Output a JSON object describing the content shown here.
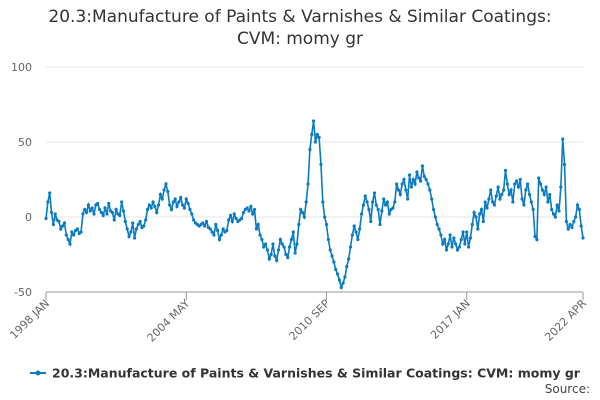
{
  "chart_data": {
    "type": "line",
    "title": "20.3:Manufacture of Paints & Varnishes & Similar Coatings: CVM: momy gr",
    "source": "Source:",
    "categories": [
      "1998 JAN",
      null,
      null,
      null,
      null,
      null,
      null,
      null,
      null,
      null,
      null,
      null,
      null,
      null,
      null,
      null,
      null,
      null,
      null,
      null,
      null,
      null,
      null,
      null,
      null,
      null,
      null,
      null,
      null,
      null,
      null,
      null,
      null,
      null,
      null,
      null,
      null,
      null,
      null,
      null,
      null,
      null,
      null,
      null,
      null,
      null,
      null,
      null,
      null,
      null,
      null,
      null,
      null,
      null,
      null,
      null,
      null,
      null,
      null,
      null,
      null,
      null,
      null,
      null,
      null,
      null,
      null,
      null,
      null,
      null,
      null,
      null,
      null,
      null,
      null,
      null,
      "2004 MAY",
      null,
      null,
      null,
      null,
      null,
      null,
      null,
      null,
      null,
      null,
      null,
      null,
      null,
      null,
      null,
      null,
      null,
      null,
      null,
      null,
      null,
      null,
      null,
      null,
      null,
      null,
      null,
      null,
      null,
      null,
      null,
      null,
      null,
      null,
      null,
      null,
      null,
      null,
      null,
      null,
      null,
      null,
      null,
      null,
      null,
      null,
      null,
      null,
      null,
      null,
      null,
      null,
      null,
      null,
      null,
      null,
      null,
      null,
      null,
      null,
      null,
      null,
      null,
      null,
      null,
      null,
      null,
      null,
      null,
      null,
      null,
      null,
      null,
      null,
      null,
      "2010 SEP",
      null,
      null,
      null,
      null,
      null,
      null,
      null,
      null,
      null,
      null,
      null,
      null,
      null,
      null,
      null,
      null,
      null,
      null,
      null,
      null,
      null,
      null,
      null,
      null,
      null,
      null,
      null,
      null,
      null,
      null,
      null,
      null,
      null,
      null,
      null,
      null,
      null,
      null,
      null,
      null,
      null,
      null,
      null,
      null,
      null,
      null,
      null,
      null,
      null,
      null,
      null,
      null,
      null,
      null,
      null,
      null,
      null,
      null,
      null,
      null,
      null,
      null,
      null,
      null,
      null,
      null,
      null,
      null,
      null,
      null,
      null,
      null,
      null,
      null,
      null,
      "2017 JAN",
      null,
      null,
      null,
      null,
      null,
      null,
      null,
      null,
      null,
      null,
      null,
      null,
      null,
      null,
      null,
      null,
      null,
      null,
      null,
      null,
      null,
      null,
      null,
      null,
      null,
      null,
      null,
      null,
      null,
      null,
      null,
      null,
      null,
      null,
      null,
      null,
      null,
      null,
      null,
      null,
      null,
      null,
      null,
      null,
      null,
      null,
      null,
      null,
      null,
      null,
      null,
      null,
      null,
      null,
      null,
      null,
      null,
      null,
      null,
      null,
      null,
      null,
      "2022 APR"
    ],
    "series": [
      {
        "name": "20.3:Manufacture of Paints & Varnishes & Similar Coatings: CVM: momy gr",
        "color": "#0a7bc1",
        "values": [
          -1,
          10,
          16,
          3,
          -5,
          2,
          -2,
          -3,
          -8,
          -6,
          -4,
          -12,
          -15,
          -18,
          -10,
          -12,
          -9,
          -8,
          -11,
          -10,
          2,
          5,
          3,
          8,
          4,
          6,
          2,
          8,
          9,
          5,
          3,
          1,
          6,
          2,
          9,
          4,
          3,
          -2,
          5,
          2,
          1,
          10,
          4,
          -3,
          -8,
          -13,
          -10,
          -4,
          -14,
          -8,
          -5,
          -3,
          -7,
          -6,
          -2,
          5,
          8,
          6,
          10,
          7,
          3,
          8,
          15,
          12,
          18,
          22,
          17,
          8,
          5,
          10,
          12,
          7,
          10,
          13,
          8,
          6,
          12,
          9,
          5,
          2,
          -2,
          -4,
          -5,
          -6,
          -5,
          -4,
          -6,
          -3,
          -7,
          -8,
          -10,
          -12,
          -5,
          -9,
          -15,
          -12,
          -8,
          -10,
          -9,
          -2,
          1,
          -3,
          2,
          -1,
          -3,
          -2,
          -1,
          3,
          5,
          6,
          4,
          7,
          2,
          5,
          -8,
          -5,
          -12,
          -15,
          -20,
          -18,
          -22,
          -28,
          -25,
          -18,
          -26,
          -29,
          -22,
          -15,
          -18,
          -20,
          -25,
          -27,
          -20,
          -15,
          -10,
          -24,
          -18,
          -5,
          5,
          3,
          0,
          10,
          22,
          45,
          55,
          64,
          50,
          55,
          53,
          35,
          10,
          0,
          -5,
          -15,
          -22,
          -26,
          -30,
          -35,
          -38,
          -42,
          -47,
          -44,
          -40,
          -33,
          -28,
          -20,
          -12,
          -6,
          -10,
          -15,
          -8,
          2,
          8,
          14,
          10,
          5,
          -3,
          10,
          16,
          8,
          5,
          -5,
          4,
          12,
          8,
          10,
          2,
          5,
          6,
          10,
          22,
          18,
          15,
          22,
          25,
          18,
          12,
          28,
          20,
          25,
          22,
          30,
          26,
          24,
          34,
          27,
          25,
          22,
          18,
          12,
          5,
          0,
          -5,
          -8,
          -12,
          -18,
          -15,
          -22,
          -18,
          -12,
          -20,
          -14,
          -18,
          -22,
          -20,
          -15,
          -10,
          -18,
          -10,
          -20,
          -14,
          -5,
          3,
          0,
          -8,
          2,
          5,
          -3,
          10,
          6,
          12,
          18,
          10,
          8,
          14,
          20,
          12,
          15,
          18,
          31,
          22,
          15,
          18,
          10,
          22,
          24,
          20,
          25,
          12,
          8,
          18,
          22,
          15,
          10,
          5,
          -13,
          -15,
          26,
          22,
          18,
          15,
          20,
          10,
          15,
          5,
          2,
          0,
          8,
          4,
          20,
          52,
          35,
          -3,
          -8,
          -5,
          -7,
          -3,
          0,
          8,
          5,
          -6,
          -14
        ]
      }
    ],
    "ylim": [
      -50,
      100
    ],
    "yticks": [
      -50,
      0,
      50,
      100
    ],
    "grid": true,
    "legend": "bottom"
  }
}
